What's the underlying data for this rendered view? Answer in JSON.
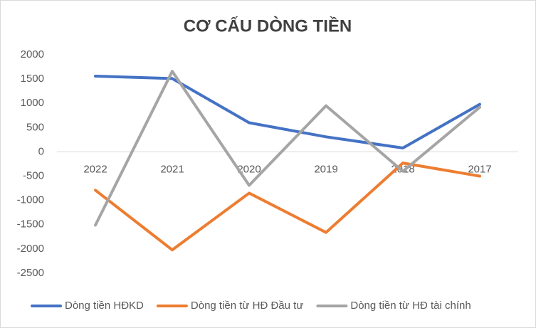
{
  "chart_data": {
    "type": "line",
    "title": "CƠ CẤU DÒNG TIỀN",
    "categories": [
      "2022",
      "2021",
      "2020",
      "2019",
      "2018",
      "2017"
    ],
    "series": [
      {
        "name": "Dòng tiền HĐKD",
        "color": "#4472c4",
        "values": [
          1560,
          1510,
          600,
          310,
          80,
          980
        ]
      },
      {
        "name": "Dòng tiền từ HĐ Đầu tư",
        "color": "#ed7d31",
        "values": [
          -790,
          -2020,
          -850,
          -1660,
          -230,
          -500
        ]
      },
      {
        "name": "Dòng tiền từ HĐ tài chính",
        "color": "#a5a5a5",
        "values": [
          -1510,
          1660,
          -690,
          950,
          -400,
          920
        ]
      }
    ],
    "ylim": [
      -2500,
      2000
    ],
    "yticks": [
      -2500,
      -2000,
      -1500,
      -1000,
      -500,
      0,
      500,
      1000,
      1500,
      2000
    ],
    "legend": "bottom"
  }
}
